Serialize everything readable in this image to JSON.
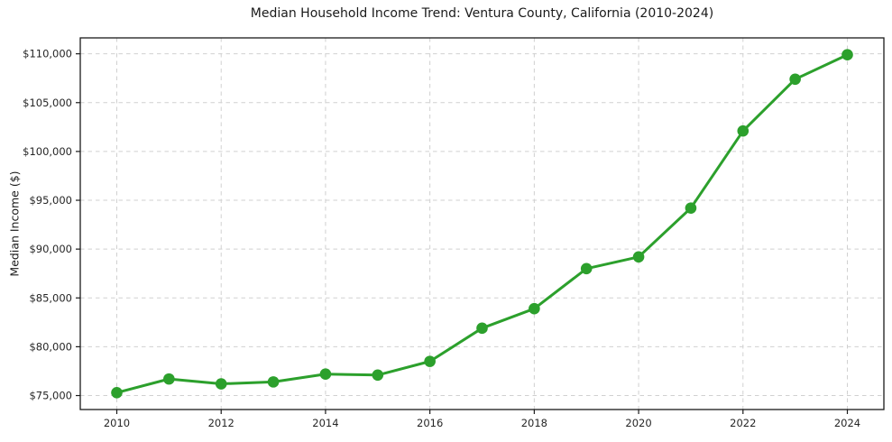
{
  "figure": {
    "background": "#ffffff",
    "text_color": "#262626",
    "grid_color": "#d0d0d0",
    "spine_color": "#1a1a1a"
  },
  "chart_data": {
    "type": "line",
    "title": "Median Household Income Trend: Ventura County, California (2010-2024)",
    "xlabel": "",
    "ylabel": "Median Income ($)",
    "x": [
      2010,
      2011,
      2012,
      2013,
      2014,
      2015,
      2016,
      2017,
      2018,
      2019,
      2020,
      2021,
      2022,
      2023,
      2024
    ],
    "series": [
      {
        "name": "Median Household Income",
        "values": [
          75300,
          76700,
          76200,
          76400,
          77200,
          77100,
          78500,
          81900,
          83900,
          88000,
          89200,
          94200,
          102100,
          107400,
          109900
        ],
        "color": "#2ca02c",
        "marker": "circle",
        "marker_size": 6.3,
        "line_width": 3
      }
    ],
    "grid": true,
    "grid_style": "dashed",
    "legend": false,
    "xlim": [
      2009.3,
      2024.7
    ],
    "ylim": [
      73570,
      111630
    ],
    "xticks": [
      2010,
      2012,
      2014,
      2016,
      2018,
      2020,
      2022,
      2024
    ],
    "xtick_labels": [
      "2010",
      "2012",
      "2014",
      "2016",
      "2018",
      "2020",
      "2022",
      "2024"
    ],
    "yticks": [
      75000,
      80000,
      85000,
      90000,
      95000,
      100000,
      105000,
      110000
    ],
    "ytick_labels": [
      "$75,000",
      "$80,000",
      "$85,000",
      "$90,000",
      "$95,000",
      "$100,000",
      "$105,000",
      "$110,000"
    ]
  }
}
